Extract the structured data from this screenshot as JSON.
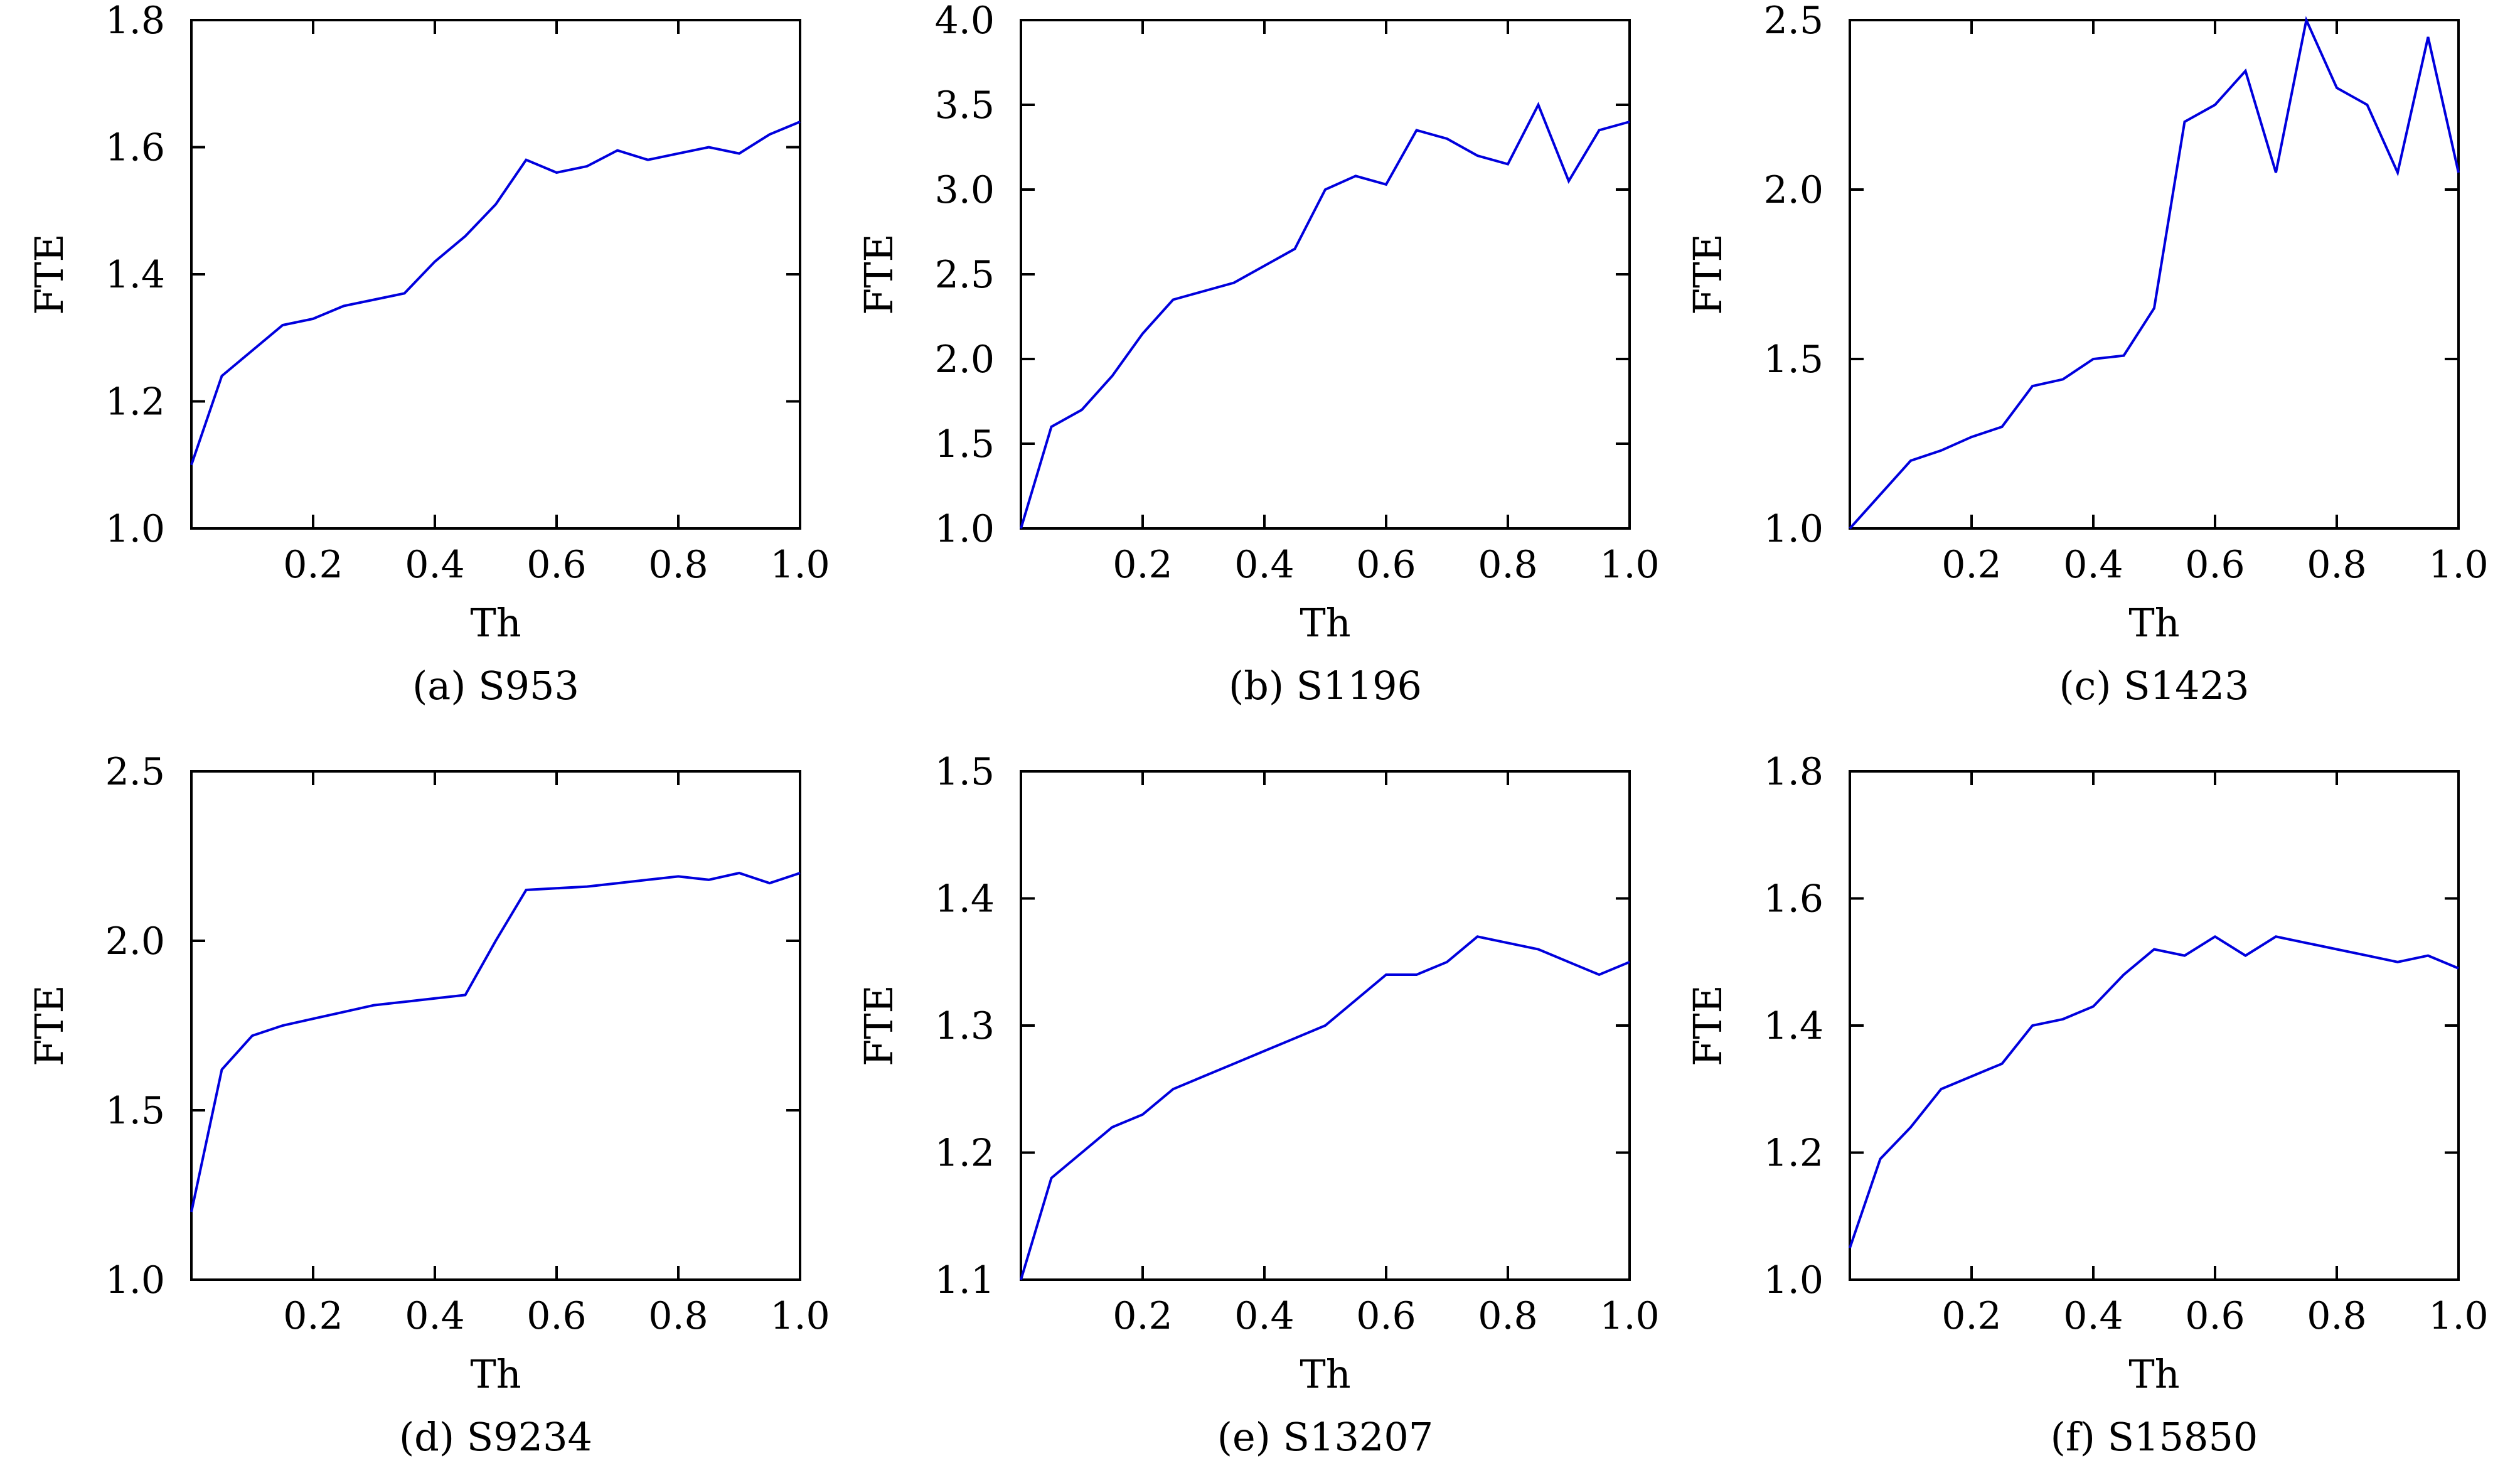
{
  "colors": {
    "series_line": "#0000dd",
    "axes": "#000000",
    "background": "#ffffff"
  },
  "chart_data": [
    {
      "type": "line",
      "caption": "(a) S953",
      "xlabel": "Th",
      "ylabel": "FTE",
      "xlim": [
        0,
        1.0
      ],
      "ylim": [
        1.0,
        1.8
      ],
      "xticks": [
        "0.2",
        "0.4",
        "0.6",
        "0.8",
        "1.0"
      ],
      "yticks": [
        "1.0",
        "1.2",
        "1.4",
        "1.6",
        "1.8"
      ],
      "series": [
        {
          "x": [
            0,
            0.05,
            0.1,
            0.15,
            0.2,
            0.25,
            0.3,
            0.35,
            0.4,
            0.45,
            0.5,
            0.55,
            0.6,
            0.65,
            0.7,
            0.75,
            0.8,
            0.85,
            0.9,
            0.95,
            1.0
          ],
          "y": [
            1.1,
            1.24,
            1.28,
            1.32,
            1.33,
            1.35,
            1.36,
            1.37,
            1.42,
            1.46,
            1.51,
            1.58,
            1.56,
            1.57,
            1.595,
            1.58,
            1.59,
            1.6,
            1.59,
            1.62,
            1.64
          ]
        }
      ]
    },
    {
      "type": "line",
      "caption": "(b) S1196",
      "xlabel": "Th",
      "ylabel": "FTE",
      "xlim": [
        0,
        1.0
      ],
      "ylim": [
        1.0,
        4.0
      ],
      "xticks": [
        "0.2",
        "0.4",
        "0.6",
        "0.8",
        "1.0"
      ],
      "yticks": [
        "1.0",
        "1.5",
        "2.0",
        "2.5",
        "3.0",
        "3.5",
        "4.0"
      ],
      "series": [
        {
          "x": [
            0,
            0.05,
            0.1,
            0.15,
            0.2,
            0.25,
            0.3,
            0.35,
            0.4,
            0.45,
            0.5,
            0.55,
            0.6,
            0.65,
            0.7,
            0.75,
            0.8,
            0.85,
            0.9,
            0.95,
            1.0
          ],
          "y": [
            1.0,
            1.6,
            1.7,
            1.9,
            2.15,
            2.35,
            2.4,
            2.45,
            2.55,
            2.65,
            3.0,
            3.08,
            3.03,
            3.35,
            3.3,
            3.2,
            3.15,
            3.5,
            3.05,
            3.35,
            3.4
          ]
        }
      ]
    },
    {
      "type": "line",
      "caption": "(c) S1423",
      "xlabel": "Th",
      "ylabel": "FTE",
      "xlim": [
        0,
        1.0
      ],
      "ylim": [
        1.0,
        2.5
      ],
      "xticks": [
        "0.2",
        "0.4",
        "0.6",
        "0.8",
        "1.0"
      ],
      "yticks": [
        "1.0",
        "1.5",
        "2.0",
        "2.5"
      ],
      "series": [
        {
          "x": [
            0,
            0.05,
            0.1,
            0.15,
            0.2,
            0.25,
            0.3,
            0.35,
            0.4,
            0.45,
            0.5,
            0.55,
            0.6,
            0.65,
            0.7,
            0.75,
            0.8,
            0.85,
            0.9,
            0.95,
            1.0
          ],
          "y": [
            1.0,
            1.1,
            1.2,
            1.23,
            1.27,
            1.3,
            1.42,
            1.44,
            1.5,
            1.51,
            1.65,
            2.2,
            2.25,
            2.35,
            2.05,
            2.5,
            2.3,
            2.25,
            2.05,
            2.45,
            2.05
          ]
        }
      ]
    },
    {
      "type": "line",
      "caption": "(d) S9234",
      "xlabel": "Th",
      "ylabel": "FTE",
      "xlim": [
        0,
        1.0
      ],
      "ylim": [
        1.0,
        2.5
      ],
      "xticks": [
        "0.2",
        "0.4",
        "0.6",
        "0.8",
        "1.0"
      ],
      "yticks": [
        "1.0",
        "1.5",
        "2.0",
        "2.5"
      ],
      "series": [
        {
          "x": [
            0,
            0.05,
            0.1,
            0.15,
            0.2,
            0.25,
            0.3,
            0.35,
            0.4,
            0.45,
            0.5,
            0.55,
            0.6,
            0.65,
            0.7,
            0.75,
            0.8,
            0.85,
            0.9,
            0.95,
            1.0
          ],
          "y": [
            1.2,
            1.62,
            1.72,
            1.75,
            1.77,
            1.79,
            1.81,
            1.82,
            1.83,
            1.84,
            2.0,
            2.15,
            2.155,
            2.16,
            2.17,
            2.18,
            2.19,
            2.18,
            2.2,
            2.17,
            2.2
          ]
        }
      ]
    },
    {
      "type": "line",
      "caption": "(e) S13207",
      "xlabel": "Th",
      "ylabel": "FTE",
      "xlim": [
        0,
        1.0
      ],
      "ylim": [
        1.1,
        1.5
      ],
      "xticks": [
        "0.2",
        "0.4",
        "0.6",
        "0.8",
        "1.0"
      ],
      "yticks": [
        "1.1",
        "1.2",
        "1.3",
        "1.4",
        "1.5"
      ],
      "series": [
        {
          "x": [
            0,
            0.05,
            0.1,
            0.15,
            0.2,
            0.25,
            0.3,
            0.35,
            0.4,
            0.45,
            0.5,
            0.55,
            0.6,
            0.65,
            0.7,
            0.75,
            0.8,
            0.85,
            0.9,
            0.95,
            1.0
          ],
          "y": [
            1.1,
            1.18,
            1.2,
            1.22,
            1.23,
            1.25,
            1.26,
            1.27,
            1.28,
            1.29,
            1.3,
            1.32,
            1.34,
            1.34,
            1.35,
            1.37,
            1.365,
            1.36,
            1.35,
            1.34,
            1.35
          ]
        }
      ]
    },
    {
      "type": "line",
      "caption": "(f) S15850",
      "xlabel": "Th",
      "ylabel": "FTE",
      "xlim": [
        0,
        1.0
      ],
      "ylim": [
        1.0,
        1.8
      ],
      "xticks": [
        "0.2",
        "0.4",
        "0.6",
        "0.8",
        "1.0"
      ],
      "yticks": [
        "1.0",
        "1.2",
        "1.4",
        "1.6",
        "1.8"
      ],
      "series": [
        {
          "x": [
            0,
            0.05,
            0.1,
            0.15,
            0.2,
            0.25,
            0.3,
            0.35,
            0.4,
            0.45,
            0.5,
            0.55,
            0.6,
            0.65,
            0.7,
            0.75,
            0.8,
            0.85,
            0.9,
            0.95,
            1.0
          ],
          "y": [
            1.05,
            1.19,
            1.24,
            1.3,
            1.32,
            1.34,
            1.4,
            1.41,
            1.43,
            1.48,
            1.52,
            1.51,
            1.54,
            1.51,
            1.54,
            1.53,
            1.52,
            1.51,
            1.5,
            1.51,
            1.49
          ]
        }
      ]
    }
  ]
}
